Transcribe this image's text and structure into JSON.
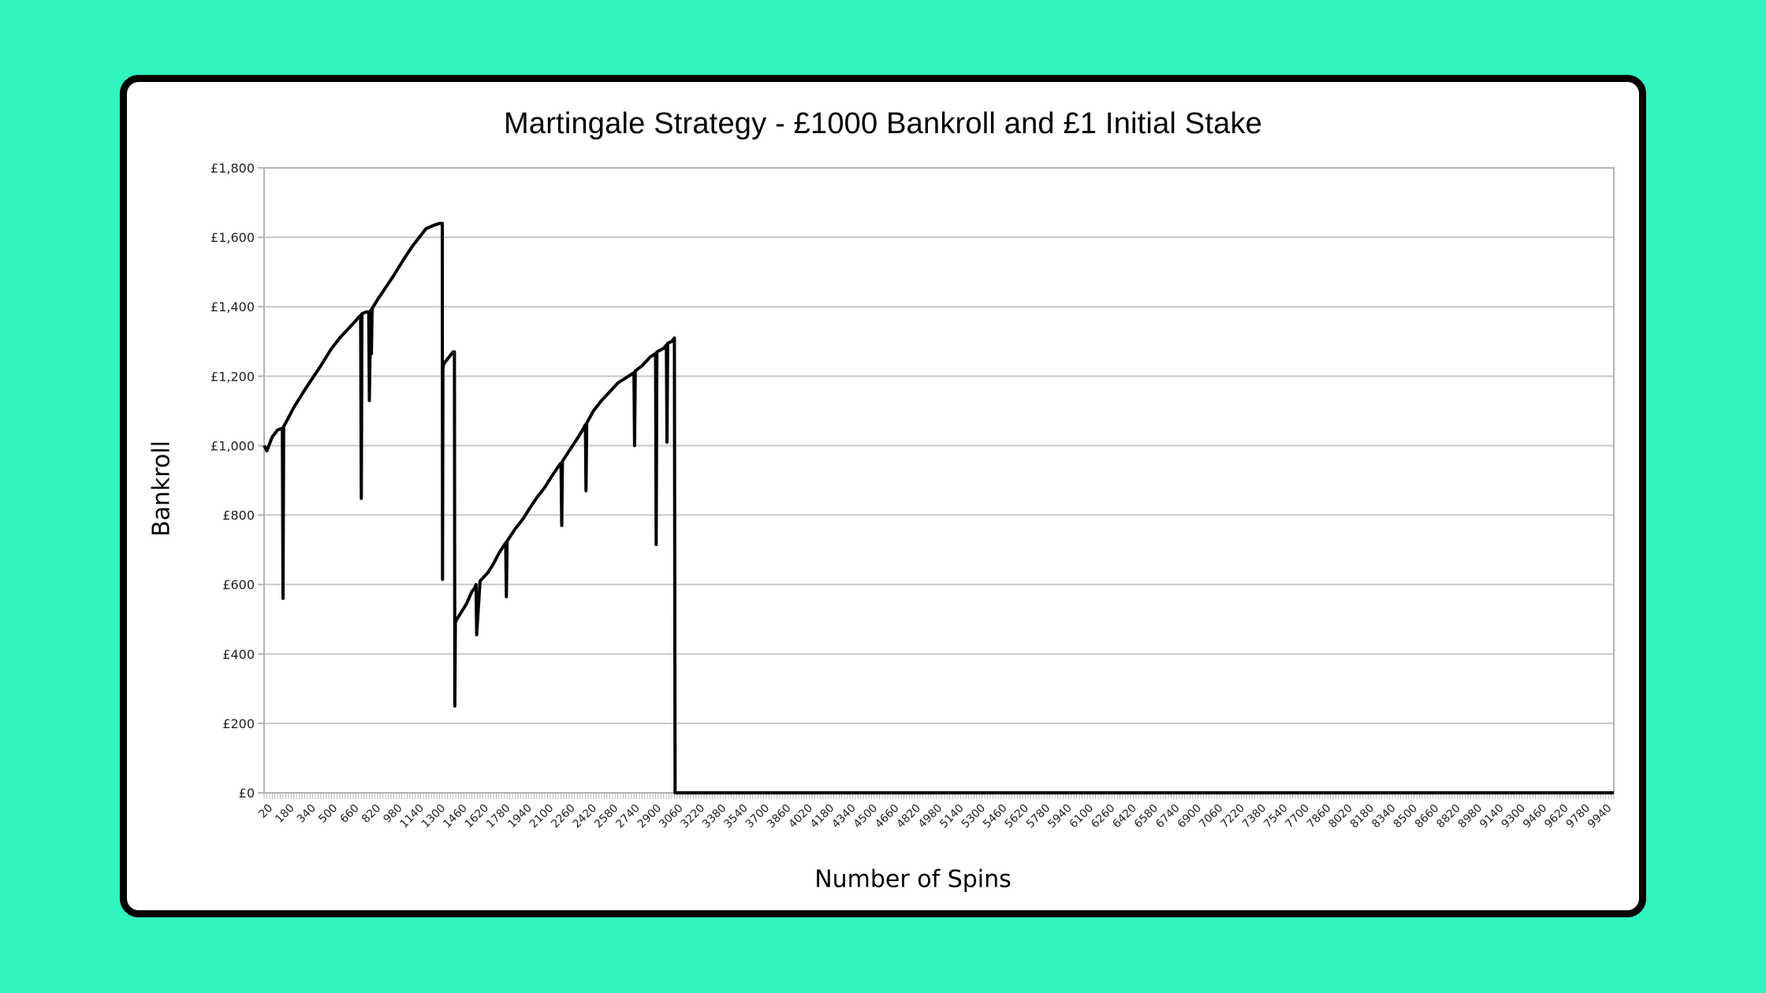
{
  "page": {
    "background": "#31f5c1",
    "card_border": "#000000"
  },
  "chart_data": {
    "type": "line",
    "title": "Martingale Strategy - £1000 Bankroll and £1 Initial Stake",
    "xlabel": "Number of Spins",
    "ylabel": "Bankroll",
    "xlim": [
      0,
      10000
    ],
    "ylim": [
      0,
      1800
    ],
    "grid": true,
    "legend": "none",
    "y_ticks": [
      0,
      200,
      400,
      600,
      800,
      1000,
      1200,
      1400,
      1600,
      1800
    ],
    "y_tick_labels": [
      "£0",
      "£200",
      "£400",
      "£600",
      "£800",
      "£1,000",
      "£1,200",
      "£1,400",
      "£1,600",
      "£1,800"
    ],
    "x_tick_labels": [
      "20",
      "180",
      "340",
      "500",
      "660",
      "820",
      "980",
      "1140",
      "1300",
      "1460",
      "1620",
      "1780",
      "1940",
      "2100",
      "2260",
      "2420",
      "2580",
      "2740",
      "2900",
      "3060",
      "3220",
      "3380",
      "3540",
      "3700",
      "3860",
      "4020",
      "4180",
      "4340",
      "4500",
      "4660",
      "4820",
      "4980",
      "5140",
      "5300",
      "5460",
      "5620",
      "5780",
      "5940",
      "6100",
      "6260",
      "6420",
      "6580",
      "6740",
      "6900",
      "7060",
      "7220",
      "7380",
      "7540",
      "7700",
      "7860",
      "8020",
      "8180",
      "8340",
      "8500",
      "8660",
      "8820",
      "8980",
      "9140",
      "9300",
      "9460",
      "9620",
      "9780",
      "9940"
    ],
    "series": [
      {
        "name": "Bankroll",
        "color": "#000000",
        "x": [
          0,
          20,
          60,
          100,
          135,
          140,
          145,
          180,
          220,
          260,
          300,
          360,
          420,
          500,
          560,
          620,
          680,
          700,
          715,
          720,
          725,
          760,
          775,
          780,
          790,
          795,
          800,
          840,
          900,
          960,
          1000,
          1040,
          1100,
          1160,
          1200,
          1260,
          1300,
          1320,
          1322,
          1325,
          1330,
          1360,
          1400,
          1410,
          1413,
          1417,
          1420,
          1460,
          1500,
          1540,
          1560,
          1570,
          1575,
          1600,
          1660,
          1700,
          1740,
          1790,
          1795,
          1800,
          1860,
          1920,
          1960,
          2020,
          2080,
          2120,
          2180,
          2200,
          2205,
          2210,
          2260,
          2320,
          2360,
          2380,
          2385,
          2390,
          2440,
          2500,
          2560,
          2620,
          2700,
          2740,
          2745,
          2750,
          2800,
          2860,
          2900,
          2905,
          2910,
          2960,
          2980,
          2985,
          2990,
          3020,
          3040,
          3045,
          3100,
          4000,
          5000,
          6000,
          7000,
          8000,
          9000,
          10000
        ],
        "values": [
          1000,
          985,
          1025,
          1045,
          1050,
          560,
          1055,
          1080,
          1110,
          1135,
          1160,
          1195,
          1230,
          1280,
          1310,
          1335,
          1360,
          1370,
          1375,
          848,
          1380,
          1385,
          1385,
          1130,
          1390,
          1265,
          1395,
          1420,
          1455,
          1490,
          1515,
          1540,
          1575,
          1605,
          1625,
          1635,
          1640,
          1640,
          615,
          1220,
          1235,
          1250,
          1270,
          1270,
          250,
          490,
          495,
          520,
          545,
          580,
          590,
          600,
          455,
          610,
          635,
          660,
          690,
          720,
          565,
          725,
          760,
          790,
          815,
          850,
          880,
          905,
          940,
          950,
          770,
          955,
          985,
          1020,
          1045,
          1060,
          870,
          1065,
          1100,
          1130,
          1155,
          1180,
          1200,
          1210,
          1000,
          1215,
          1230,
          1255,
          1265,
          715,
          1270,
          1280,
          1290,
          1010,
          1295,
          1300,
          1310,
          0,
          0,
          0,
          0,
          0,
          0,
          0,
          0,
          0
        ]
      }
    ]
  }
}
